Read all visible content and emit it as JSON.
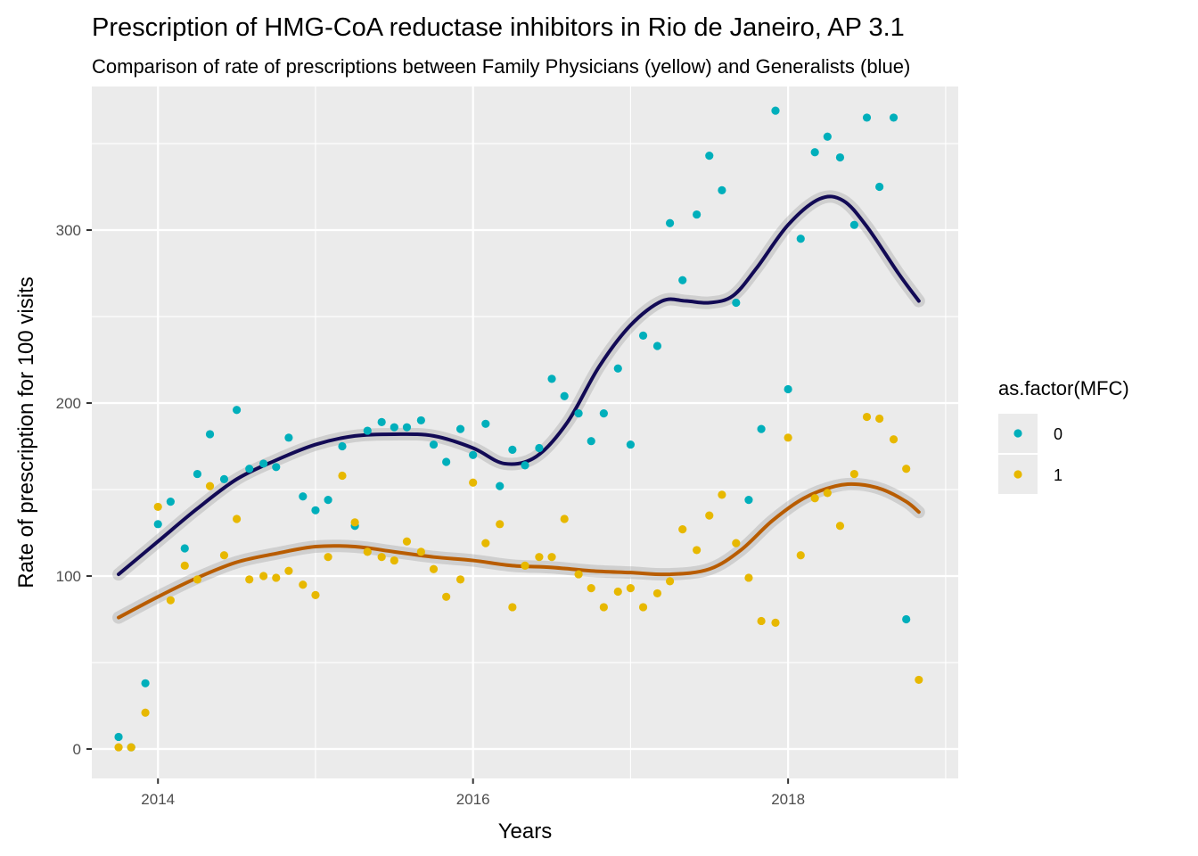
{
  "chart_data": {
    "type": "scatter",
    "title": "Prescription of HMG-CoA reductase inhibitors in Rio de Janeiro, AP 3.1",
    "subtitle": "Comparison of rate of prescriptions between Family Physicians (yellow) and Generalists (blue)",
    "xlabel": "Years",
    "ylabel": "Rate of prescription for 100 visits",
    "xlim": [
      2013.58,
      2019.08
    ],
    "ylim": [
      -17,
      383
    ],
    "x_ticks": [
      2014,
      2016,
      2018
    ],
    "x_tick_labels": [
      "2014",
      "2016",
      "2018"
    ],
    "y_ticks": [
      0,
      100,
      200,
      300
    ],
    "y_tick_labels": [
      "0",
      "100",
      "200",
      "300"
    ],
    "grid": true,
    "background": "#ebebeb",
    "legend": {
      "title": "as.factor(MFC)",
      "position": "right"
    },
    "series": [
      {
        "name": "0",
        "color": "#00AFBB",
        "smooth_color": "#120a55",
        "x": [
          2013.75,
          2013.83,
          2013.92,
          2014.0,
          2014.08,
          2014.17,
          2014.25,
          2014.33,
          2014.42,
          2014.5,
          2014.58,
          2014.67,
          2014.75,
          2014.83,
          2014.92,
          2015.0,
          2015.08,
          2015.17,
          2015.25,
          2015.33,
          2015.42,
          2015.5,
          2015.58,
          2015.67,
          2015.75,
          2015.83,
          2015.92,
          2016.0,
          2016.08,
          2016.17,
          2016.25,
          2016.33,
          2016.42,
          2016.5,
          2016.58,
          2016.67,
          2016.75,
          2016.83,
          2016.92,
          2017.0,
          2017.08,
          2017.17,
          2017.25,
          2017.33,
          2017.42,
          2017.5,
          2017.58,
          2017.67,
          2017.75,
          2017.83,
          2017.92,
          2018.0,
          2018.08,
          2018.17,
          2018.25,
          2018.33,
          2018.42,
          2018.5,
          2018.58,
          2018.67,
          2018.75,
          2018.83
        ],
        "values": [
          7,
          1,
          38,
          130,
          143,
          116,
          159,
          182,
          156,
          196,
          162,
          165,
          163,
          180,
          146,
          138,
          144,
          175,
          129,
          184,
          189,
          186,
          186,
          190,
          176,
          166,
          185,
          170,
          188,
          152,
          173,
          164,
          174,
          214,
          204,
          194,
          178,
          194,
          220,
          176,
          239,
          233,
          304,
          271,
          309,
          343,
          323,
          258,
          144,
          185,
          369,
          208,
          295,
          345,
          354,
          342,
          303,
          365,
          325,
          365,
          75,
          null
        ],
        "smooth_x": [
          2013.75,
          2014.0,
          2014.25,
          2014.5,
          2014.75,
          2015.0,
          2015.25,
          2015.5,
          2015.75,
          2016.0,
          2016.2,
          2016.4,
          2016.6,
          2016.8,
          2017.0,
          2017.2,
          2017.35,
          2017.5,
          2017.65,
          2017.8,
          2018.0,
          2018.2,
          2018.35,
          2018.5,
          2018.7,
          2018.83
        ],
        "smooth_values": [
          101,
          120,
          139,
          156,
          167,
          176,
          181,
          182,
          181,
          174,
          165,
          169,
          189,
          221,
          245,
          259,
          259,
          258,
          262,
          278,
          303,
          318,
          317,
          302,
          275,
          259
        ]
      },
      {
        "name": "1",
        "color": "#E7B800",
        "smooth_color": "#b85c00",
        "x": [
          2013.75,
          2013.83,
          2013.92,
          2014.0,
          2014.08,
          2014.17,
          2014.25,
          2014.33,
          2014.42,
          2014.5,
          2014.58,
          2014.67,
          2014.75,
          2014.83,
          2014.92,
          2015.0,
          2015.08,
          2015.17,
          2015.25,
          2015.33,
          2015.42,
          2015.5,
          2015.58,
          2015.67,
          2015.75,
          2015.83,
          2015.92,
          2016.0,
          2016.08,
          2016.17,
          2016.25,
          2016.33,
          2016.42,
          2016.5,
          2016.58,
          2016.67,
          2016.75,
          2016.83,
          2016.92,
          2017.0,
          2017.08,
          2017.17,
          2017.25,
          2017.33,
          2017.42,
          2017.5,
          2017.58,
          2017.67,
          2017.75,
          2017.83,
          2017.92,
          2018.0,
          2018.08,
          2018.17,
          2018.25,
          2018.33,
          2018.42,
          2018.5,
          2018.58,
          2018.67,
          2018.75,
          2018.83
        ],
        "values": [
          1,
          1,
          21,
          140,
          86,
          106,
          98,
          152,
          112,
          133,
          98,
          100,
          99,
          103,
          95,
          89,
          111,
          158,
          131,
          114,
          111,
          109,
          120,
          114,
          104,
          88,
          98,
          154,
          119,
          130,
          82,
          106,
          111,
          111,
          133,
          101,
          93,
          82,
          91,
          93,
          82,
          90,
          97,
          127,
          115,
          135,
          147,
          119,
          99,
          74,
          73,
          180,
          112,
          145,
          148,
          129,
          159,
          192,
          191,
          179,
          162,
          40
        ],
        "smooth_x": [
          2013.75,
          2014.0,
          2014.25,
          2014.5,
          2014.75,
          2015.0,
          2015.25,
          2015.5,
          2015.75,
          2016.0,
          2016.25,
          2016.5,
          2016.75,
          2017.0,
          2017.25,
          2017.5,
          2017.7,
          2017.9,
          2018.1,
          2018.3,
          2018.45,
          2018.6,
          2018.75,
          2018.83
        ],
        "smooth_values": [
          76,
          88,
          99,
          108,
          113,
          117,
          117,
          114,
          111,
          109,
          106,
          105,
          103,
          102,
          101,
          104,
          115,
          132,
          145,
          152,
          153,
          150,
          143,
          137
        ]
      }
    ]
  }
}
